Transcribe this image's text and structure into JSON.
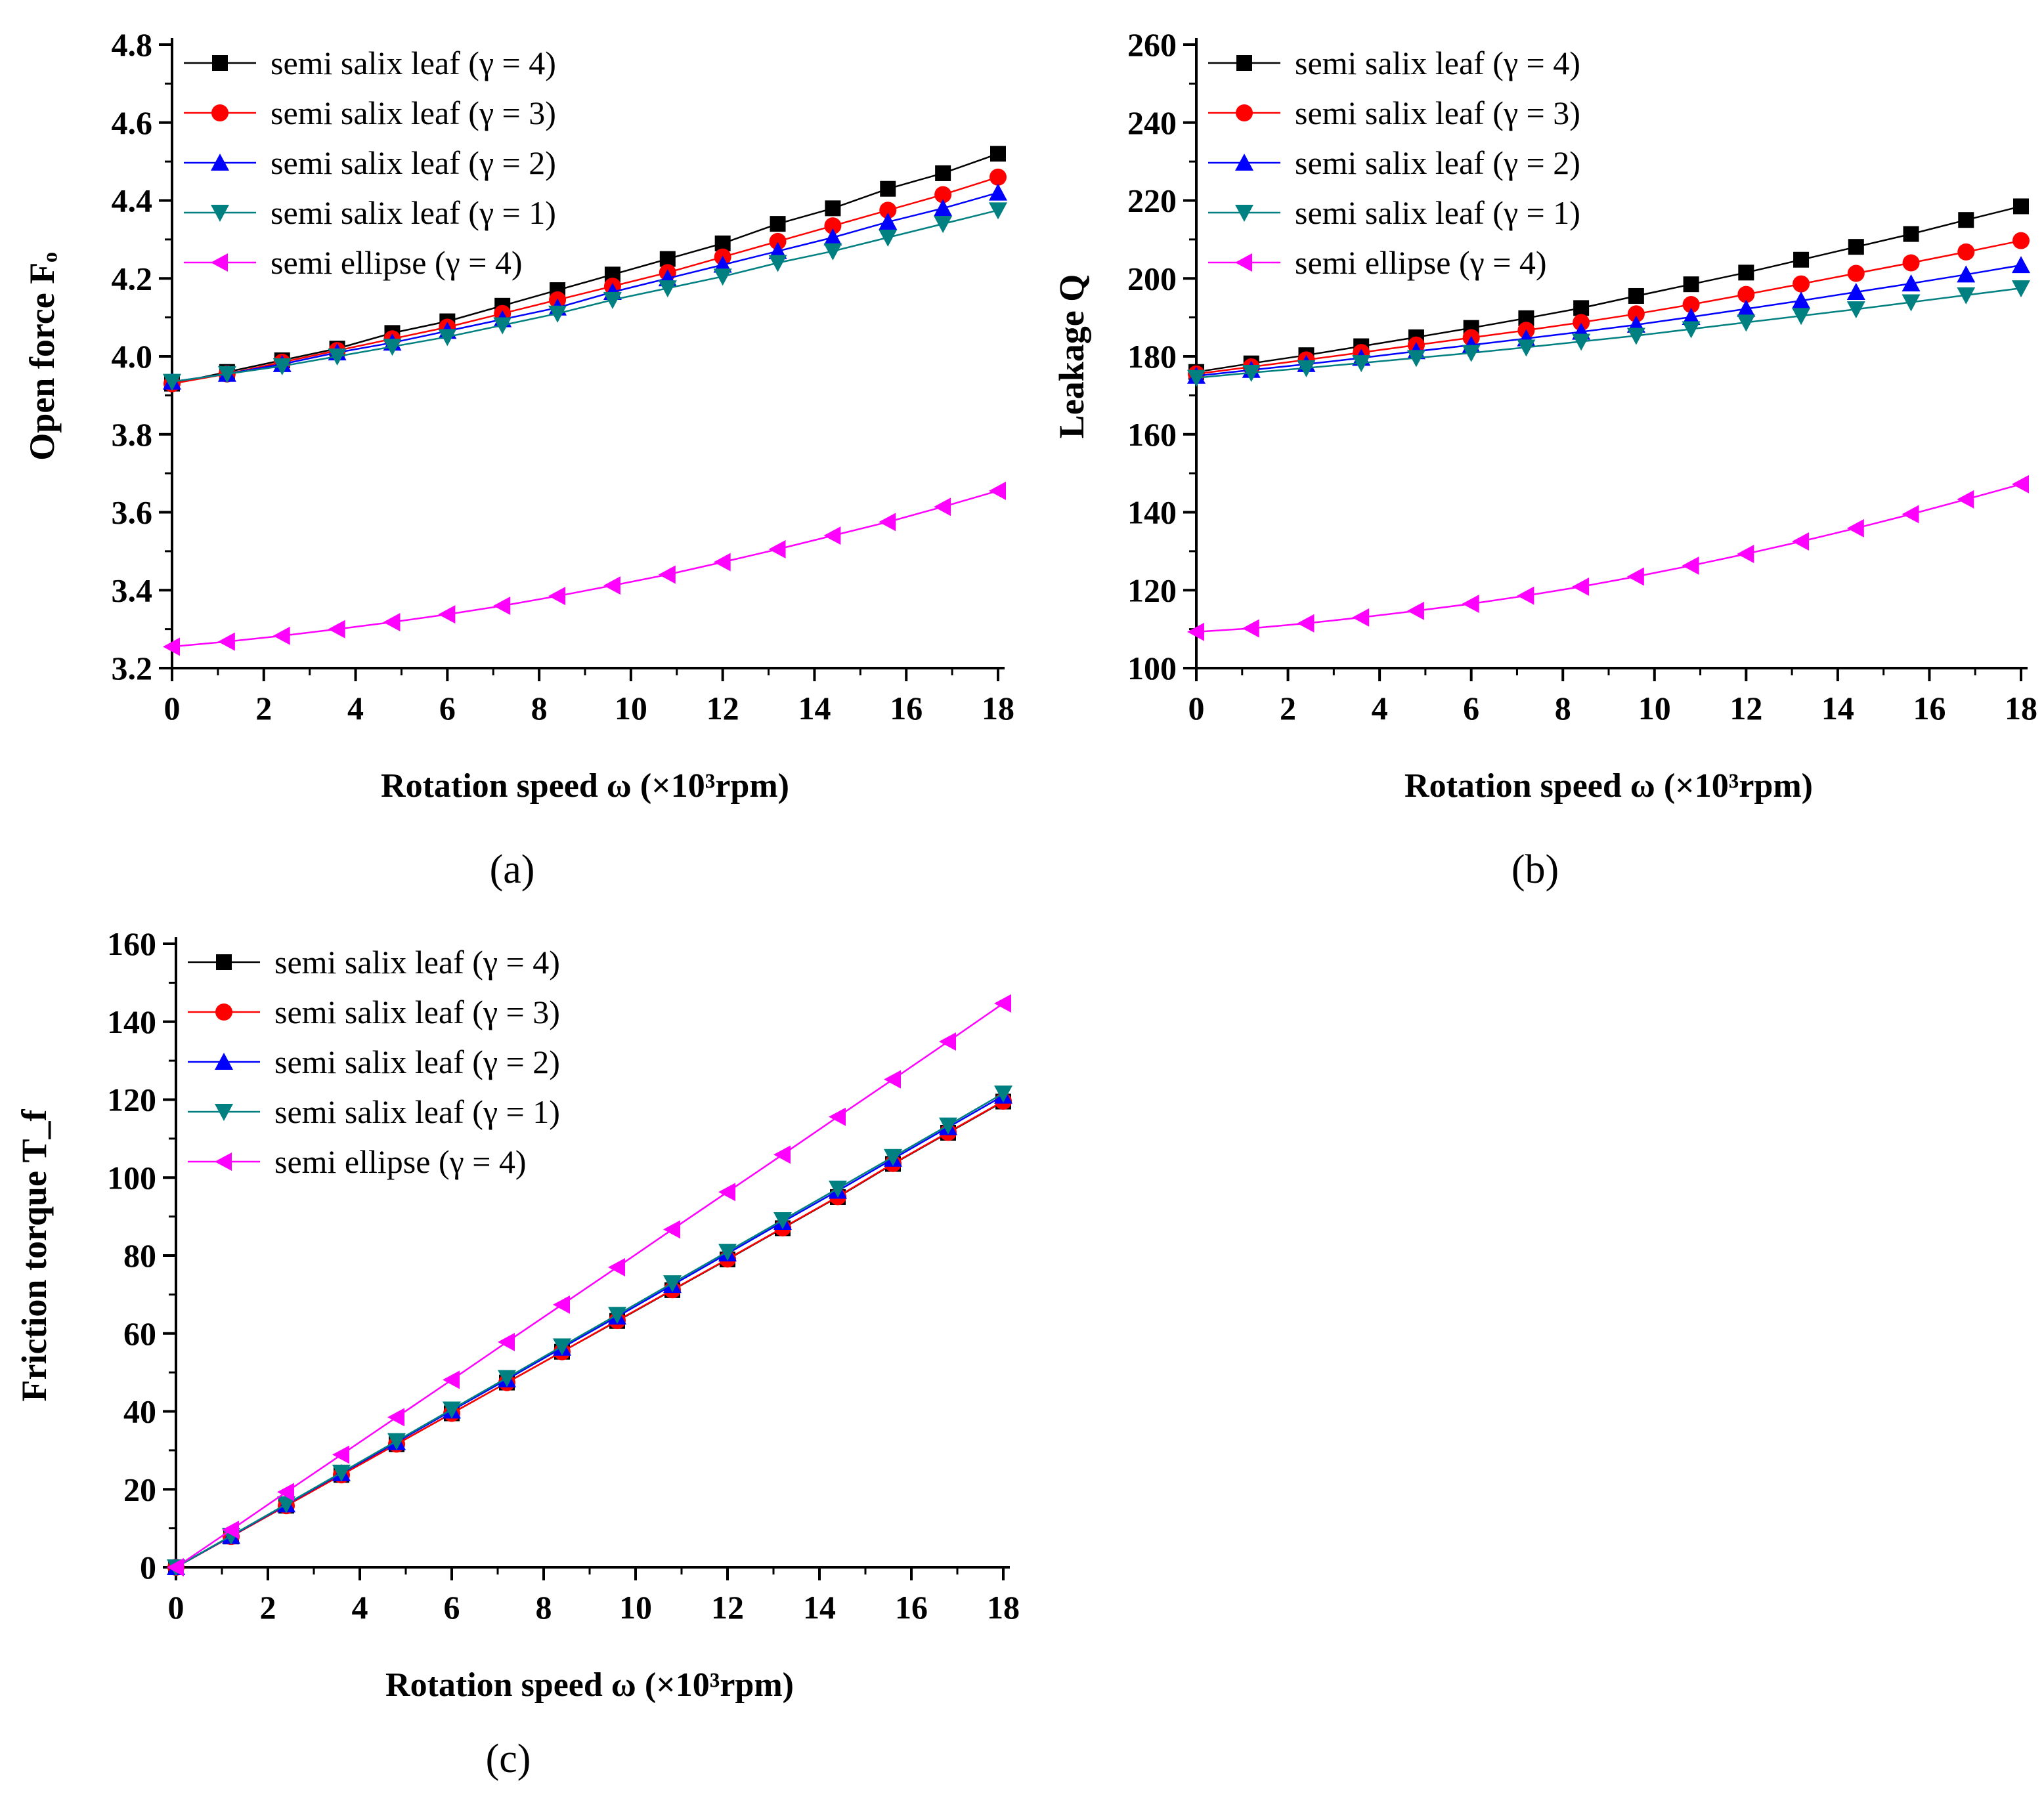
{
  "x": [
    0,
    1.2,
    2.4,
    3.6,
    4.8,
    6.0,
    7.2,
    8.4,
    9.6,
    10.8,
    12.0,
    13.2,
    14.4,
    15.6,
    16.8,
    18.0
  ],
  "series_meta": [
    {
      "key": "g4",
      "name": "semi salix leaf (γ = 4)",
      "color": "#000000",
      "marker": "square"
    },
    {
      "key": "g3",
      "name": "semi salix leaf (γ = 3)",
      "color": "#ff0000",
      "marker": "circle"
    },
    {
      "key": "g2",
      "name": "semi salix leaf (γ = 2)",
      "color": "#0000ff",
      "marker": "triangle-up"
    },
    {
      "key": "g1",
      "name": "semi salix leaf (γ = 1)",
      "color": "#008080",
      "marker": "triangle-down"
    },
    {
      "key": "el",
      "name": "semi ellipse (γ = 4)",
      "color": "#ff00ff",
      "marker": "triangle-left"
    }
  ],
  "chart_data": [
    {
      "id": "a",
      "type": "line",
      "panel_label": "(a)",
      "xlabel": "Rotation speed  ω (×10³rpm)",
      "ylabel": "Open force Fₒ",
      "xlim": [
        0,
        18
      ],
      "ylim": [
        3.2,
        4.8
      ],
      "xticks": [
        "0",
        "2",
        "4",
        "6",
        "8",
        "10",
        "12",
        "14",
        "16",
        "18"
      ],
      "yticks": [
        "3.2",
        "3.4",
        "3.6",
        "3.8",
        "4.0",
        "4.2",
        "4.4",
        "4.6",
        "4.8"
      ],
      "series": [
        {
          "name": "semi salix leaf (γ = 4)",
          "values": [
            3.93,
            3.96,
            3.99,
            4.02,
            4.06,
            4.09,
            4.13,
            4.17,
            4.21,
            4.25,
            4.29,
            4.34,
            4.38,
            4.43,
            4.47,
            4.52
          ]
        },
        {
          "name": "semi salix leaf (γ = 3)",
          "values": [
            3.93,
            3.955,
            3.985,
            4.015,
            4.045,
            4.075,
            4.11,
            4.145,
            4.18,
            4.215,
            4.255,
            4.295,
            4.335,
            4.375,
            4.415,
            4.46
          ]
        },
        {
          "name": "semi salix leaf (γ = 2)",
          "values": [
            3.935,
            3.955,
            3.98,
            4.01,
            4.035,
            4.065,
            4.095,
            4.125,
            4.165,
            4.2,
            4.235,
            4.27,
            4.305,
            4.345,
            4.38,
            4.42
          ]
        },
        {
          "name": "semi salix leaf (γ = 1)",
          "values": [
            3.935,
            3.955,
            3.975,
            4.0,
            4.025,
            4.05,
            4.08,
            4.11,
            4.145,
            4.175,
            4.205,
            4.24,
            4.27,
            4.305,
            4.34,
            4.375
          ]
        },
        {
          "name": "semi ellipse (γ = 4)",
          "values": [
            3.255,
            3.268,
            3.283,
            3.3,
            3.318,
            3.338,
            3.36,
            3.385,
            3.412,
            3.44,
            3.472,
            3.505,
            3.54,
            3.575,
            3.614,
            3.655
          ]
        }
      ]
    },
    {
      "id": "b",
      "type": "line",
      "panel_label": "(b)",
      "xlabel": "Rotation speed  ω (×10³rpm)",
      "ylabel": "Leakage Q",
      "xlim": [
        0,
        18
      ],
      "ylim": [
        100,
        260
      ],
      "xticks": [
        "0",
        "2",
        "4",
        "6",
        "8",
        "10",
        "12",
        "14",
        "16",
        "18"
      ],
      "yticks": [
        "100",
        "120",
        "140",
        "160",
        "180",
        "200",
        "220",
        "240",
        "260"
      ],
      "series": [
        {
          "name": "semi salix leaf (γ = 4)",
          "values": [
            176,
            178.2,
            180.3,
            182.6,
            184.9,
            187.3,
            189.8,
            192.4,
            195.5,
            198.5,
            201.5,
            204.8,
            208.1,
            211.4,
            215.0,
            218.5
          ]
        },
        {
          "name": "semi salix leaf (γ = 3)",
          "values": [
            175.5,
            177.3,
            179.1,
            181.0,
            182.9,
            184.8,
            186.7,
            188.7,
            190.9,
            193.3,
            195.9,
            198.6,
            201.3,
            204.0,
            206.8,
            209.7
          ]
        },
        {
          "name": "semi salix leaf (γ = 2)",
          "values": [
            175,
            176.5,
            178,
            179.6,
            181.3,
            182.9,
            184.6,
            186.3,
            188.1,
            190.1,
            192.2,
            194.3,
            196.5,
            198.7,
            201.0,
            203.4
          ]
        },
        {
          "name": "semi salix leaf (γ = 1)",
          "values": [
            174.5,
            175.8,
            177.0,
            178.3,
            179.6,
            180.9,
            182.3,
            183.8,
            185.3,
            187.0,
            188.7,
            190.4,
            192.1,
            193.9,
            195.7,
            197.5
          ]
        },
        {
          "name": "semi ellipse (γ = 4)",
          "values": [
            109.3,
            110.2,
            111.5,
            113.0,
            114.7,
            116.5,
            118.6,
            120.9,
            123.5,
            126.3,
            129.3,
            132.5,
            135.9,
            139.5,
            143.3,
            147.2
          ]
        }
      ]
    },
    {
      "id": "c",
      "type": "line",
      "panel_label": "(c)",
      "xlabel": "Rotation speed  ω (×10³rpm)",
      "ylabel": "Friction torque T_f",
      "xlim": [
        0,
        18
      ],
      "ylim": [
        0,
        160
      ],
      "xticks": [
        "0",
        "2",
        "4",
        "6",
        "8",
        "10",
        "12",
        "14",
        "16",
        "18"
      ],
      "yticks": [
        "0",
        "20",
        "40",
        "60",
        "80",
        "100",
        "120",
        "140",
        "160"
      ],
      "series": [
        {
          "name": "semi salix leaf (γ = 4)",
          "values": [
            0,
            7.9,
            15.8,
            23.7,
            31.6,
            39.5,
            47.4,
            55.3,
            63.2,
            71.1,
            79.0,
            87.0,
            95.0,
            103.5,
            111.5,
            119.5
          ]
        },
        {
          "name": "semi salix leaf (γ = 3)",
          "values": [
            0,
            7.9,
            15.8,
            23.7,
            31.6,
            39.5,
            47.4,
            55.3,
            63.3,
            71.2,
            79.1,
            87.1,
            95.1,
            103.6,
            111.6,
            119.6
          ]
        },
        {
          "name": "semi salix leaf (γ = 2)",
          "values": [
            0,
            8.0,
            16.1,
            24.1,
            32.1,
            40.2,
            48.2,
            56.3,
            64.3,
            72.4,
            80.5,
            88.6,
            96.6,
            104.8,
            112.9,
            121.0
          ]
        },
        {
          "name": "semi salix leaf (γ = 1)",
          "values": [
            0,
            8.1,
            16.2,
            24.3,
            32.4,
            40.5,
            48.6,
            56.7,
            64.8,
            72.9,
            81.0,
            89.1,
            97.2,
            105.3,
            113.4,
            121.6
          ]
        },
        {
          "name": "semi ellipse (γ = 4)",
          "values": [
            0,
            9.6,
            19.3,
            28.9,
            38.5,
            48.1,
            57.8,
            67.4,
            77.0,
            86.7,
            96.3,
            105.9,
            115.6,
            125.2,
            134.9,
            144.7
          ]
        }
      ]
    }
  ]
}
